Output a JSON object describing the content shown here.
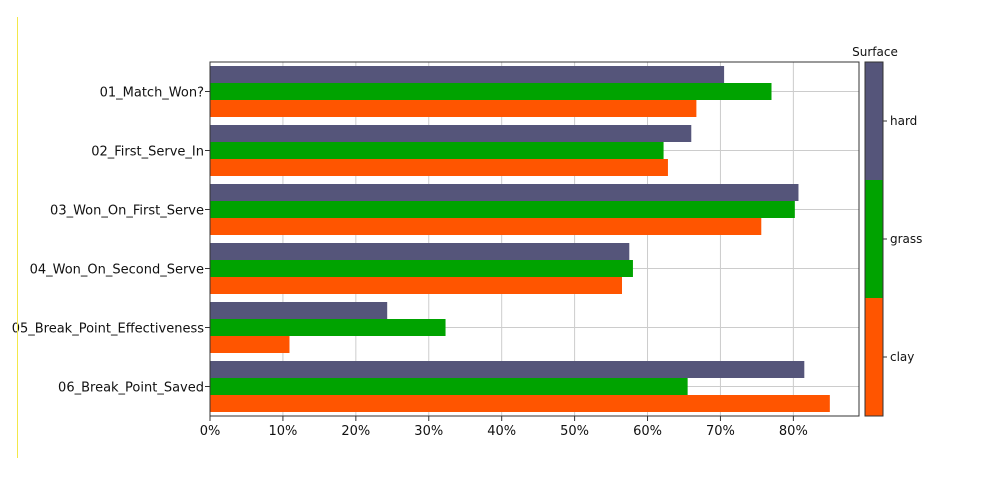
{
  "chart_data": {
    "type": "bar",
    "orientation": "horizontal",
    "categories": [
      "01_Match_Won?",
      "02_First_Serve_In",
      "03_Won_On_First_Serve",
      "04_Won_On_Second_Serve",
      "05_Break_Point_Effectiveness",
      "06_Break_Point_Saved"
    ],
    "series": [
      {
        "name": "hard",
        "color": "#55557a",
        "values": [
          0.705,
          0.66,
          0.807,
          0.575,
          0.243,
          0.815
        ]
      },
      {
        "name": "grass",
        "color": "#00a300",
        "values": [
          0.77,
          0.622,
          0.802,
          0.58,
          0.323,
          0.655
        ]
      },
      {
        "name": "clay",
        "color": "#ff5500",
        "values": [
          0.667,
          0.628,
          0.756,
          0.565,
          0.109,
          0.85
        ]
      }
    ],
    "xticks": [
      "0%",
      "10%",
      "20%",
      "30%",
      "40%",
      "50%",
      "60%",
      "70%",
      "80%"
    ],
    "xlim": [
      0,
      0.89
    ],
    "grid": true,
    "colorbar": {
      "title": "Surface",
      "labels": [
        "hard",
        "grass",
        "clay"
      ],
      "colors": [
        "#55557a",
        "#00a300",
        "#ff5500"
      ]
    }
  }
}
